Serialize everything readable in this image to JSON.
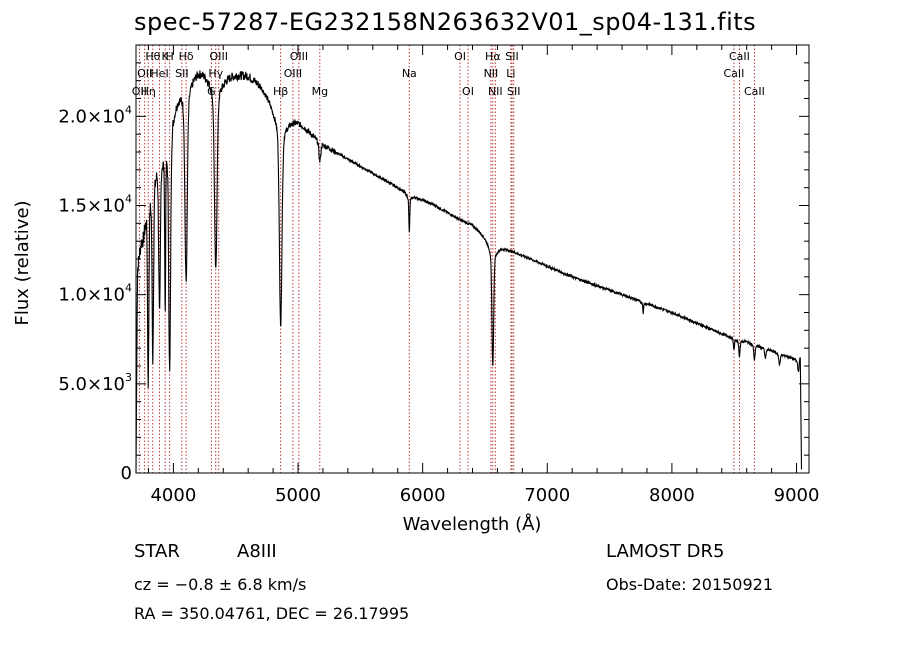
{
  "chart_data": {
    "type": "line",
    "title": "spec-57287-EG232158N263632V01_sp04-131.fits",
    "xlabel": "Wavelength (Å)",
    "ylabel": "Flux (relative)",
    "xlim": [
      3700,
      9100
    ],
    "ylim": [
      0,
      24000
    ],
    "x_ticks": [
      4000,
      5000,
      6000,
      7000,
      8000,
      9000
    ],
    "x_tick_labels": [
      "4000",
      "5000",
      "6000",
      "7000",
      "8000",
      "9000"
    ],
    "y_ticks": [
      0,
      5000,
      10000,
      15000,
      20000
    ],
    "y_tick_labels": [
      "0",
      "5.0×10",
      "1.0×10",
      "1.5×10",
      "2.0×10"
    ],
    "y_tick_exponents": [
      "",
      "3",
      "4",
      "4",
      "4"
    ],
    "grid": false,
    "line_color": "#000000",
    "marker_color": "#b22222",
    "continuum": [
      [
        3700,
        0
      ],
      [
        3712,
        11500
      ],
      [
        3740,
        13200
      ],
      [
        3760,
        13800
      ],
      [
        3780,
        15500
      ],
      [
        3800,
        17000
      ],
      [
        3830,
        18000
      ],
      [
        3860,
        18800
      ],
      [
        3890,
        19500
      ],
      [
        3930,
        20300
      ],
      [
        3970,
        21000
      ],
      [
        4000,
        21600
      ],
      [
        4050,
        22200
      ],
      [
        4100,
        22600
      ],
      [
        4150,
        22800
      ],
      [
        4200,
        22900
      ],
      [
        4300,
        22700
      ],
      [
        4400,
        22500
      ],
      [
        4500,
        22400
      ],
      [
        4600,
        22300
      ],
      [
        4700,
        21800
      ],
      [
        4800,
        21000
      ],
      [
        4900,
        20300
      ],
      [
        5000,
        19800
      ],
      [
        5100,
        19100
      ],
      [
        5200,
        18500
      ],
      [
        5300,
        18000
      ],
      [
        5400,
        17600
      ],
      [
        5500,
        17200
      ],
      [
        5600,
        16800
      ],
      [
        5700,
        16400
      ],
      [
        5800,
        16000
      ],
      [
        5900,
        15600
      ],
      [
        6000,
        15300
      ],
      [
        6100,
        15000
      ],
      [
        6200,
        14600
      ],
      [
        6300,
        14200
      ],
      [
        6400,
        13900
      ],
      [
        6500,
        13400
      ],
      [
        6600,
        12900
      ],
      [
        6700,
        12500
      ],
      [
        6800,
        12200
      ],
      [
        7000,
        11600
      ],
      [
        7200,
        11000
      ],
      [
        7400,
        10500
      ],
      [
        7600,
        10000
      ],
      [
        7800,
        9500
      ],
      [
        8000,
        9000
      ],
      [
        8200,
        8400
      ],
      [
        8400,
        7800
      ],
      [
        8600,
        7400
      ],
      [
        8800,
        6900
      ],
      [
        8950,
        6500
      ],
      [
        9000,
        6400
      ],
      [
        9030,
        6600
      ],
      [
        9040,
        200
      ]
    ],
    "absorption_lines": [
      {
        "center": 3798,
        "depth": 0.55,
        "width": 7
      },
      {
        "center": 3835,
        "depth": 0.5,
        "width": 8
      },
      {
        "center": 3889,
        "depth": 0.42,
        "width": 9
      },
      {
        "center": 3934,
        "depth": 0.42,
        "width": 5
      },
      {
        "center": 3970,
        "depth": 0.58,
        "width": 10
      },
      {
        "center": 4102,
        "depth": 0.42,
        "width": 13
      },
      {
        "center": 4340,
        "depth": 0.4,
        "width": 14
      },
      {
        "center": 4861,
        "depth": 0.48,
        "width": 14
      },
      {
        "center": 5175,
        "depth": 0.05,
        "width": 10
      },
      {
        "center": 5893,
        "depth": 0.11,
        "width": 5
      },
      {
        "center": 6563,
        "depth": 0.43,
        "width": 10
      },
      {
        "center": 7770,
        "depth": 0.05,
        "width": 4
      },
      {
        "center": 8498,
        "depth": 0.07,
        "width": 6
      },
      {
        "center": 8542,
        "depth": 0.1,
        "width": 7
      },
      {
        "center": 8662,
        "depth": 0.1,
        "width": 7
      },
      {
        "center": 8750,
        "depth": 0.07,
        "width": 7
      },
      {
        "center": 8863,
        "depth": 0.08,
        "width": 8
      },
      {
        "center": 9015,
        "depth": 0.1,
        "width": 8
      }
    ],
    "line_markers": [
      {
        "wavelength": 3727,
        "label": "OII",
        "row": 2
      },
      {
        "wavelength": 3770,
        "label": "OII",
        "row": 1
      },
      {
        "wavelength": 3798,
        "label": "Hη",
        "row": 2
      },
      {
        "wavelength": 3835,
        "label": "Hθ",
        "row": 0
      },
      {
        "wavelength": 3889,
        "label": "HeI",
        "row": 1
      },
      {
        "wavelength": 3934,
        "label": "K",
        "row": 0
      },
      {
        "wavelength": 3970,
        "label": "H",
        "row": 0
      },
      {
        "wavelength": 4102,
        "label": "Hδ",
        "row": 0
      },
      {
        "wavelength": 4068,
        "label": "SII",
        "row": 1
      },
      {
        "wavelength": 4305,
        "label": "G",
        "row": 2
      },
      {
        "wavelength": 4340,
        "label": "Hγ",
        "row": 1
      },
      {
        "wavelength": 4364,
        "label": "OIII",
        "row": 0
      },
      {
        "wavelength": 4861,
        "label": "Hβ",
        "row": 2
      },
      {
        "wavelength": 4959,
        "label": "OIII",
        "row": 1
      },
      {
        "wavelength": 5007,
        "label": "OIII",
        "row": 0
      },
      {
        "wavelength": 5175,
        "label": "Mg",
        "row": 2
      },
      {
        "wavelength": 5893,
        "label": "Na",
        "row": 1
      },
      {
        "wavelength": 6300,
        "label": "OI",
        "row": 0
      },
      {
        "wavelength": 6364,
        "label": "OI",
        "row": 2
      },
      {
        "wavelength": 6548,
        "label": "NII",
        "row": 1
      },
      {
        "wavelength": 6563,
        "label": "Hα",
        "row": 0
      },
      {
        "wavelength": 6583,
        "label": "NII",
        "row": 2
      },
      {
        "wavelength": 6708,
        "label": "Li",
        "row": 1
      },
      {
        "wavelength": 6717,
        "label": "SII",
        "row": 0
      },
      {
        "wavelength": 6731,
        "label": "SII",
        "row": 2
      },
      {
        "wavelength": 8498,
        "label": "CaII",
        "row": 1
      },
      {
        "wavelength": 8542,
        "label": "CaII",
        "row": 0
      },
      {
        "wavelength": 8662,
        "label": "CaII",
        "row": 2
      }
    ]
  },
  "info": {
    "object_class": "STAR",
    "subclass": "A8III",
    "survey": "LAMOST  DR5",
    "redshift_text": "cz = −0.8 ± 6.8 km/s",
    "obs_date": "Obs-Date: 20150921",
    "coords": "RA = 350.04761, DEC =  26.17995"
  }
}
